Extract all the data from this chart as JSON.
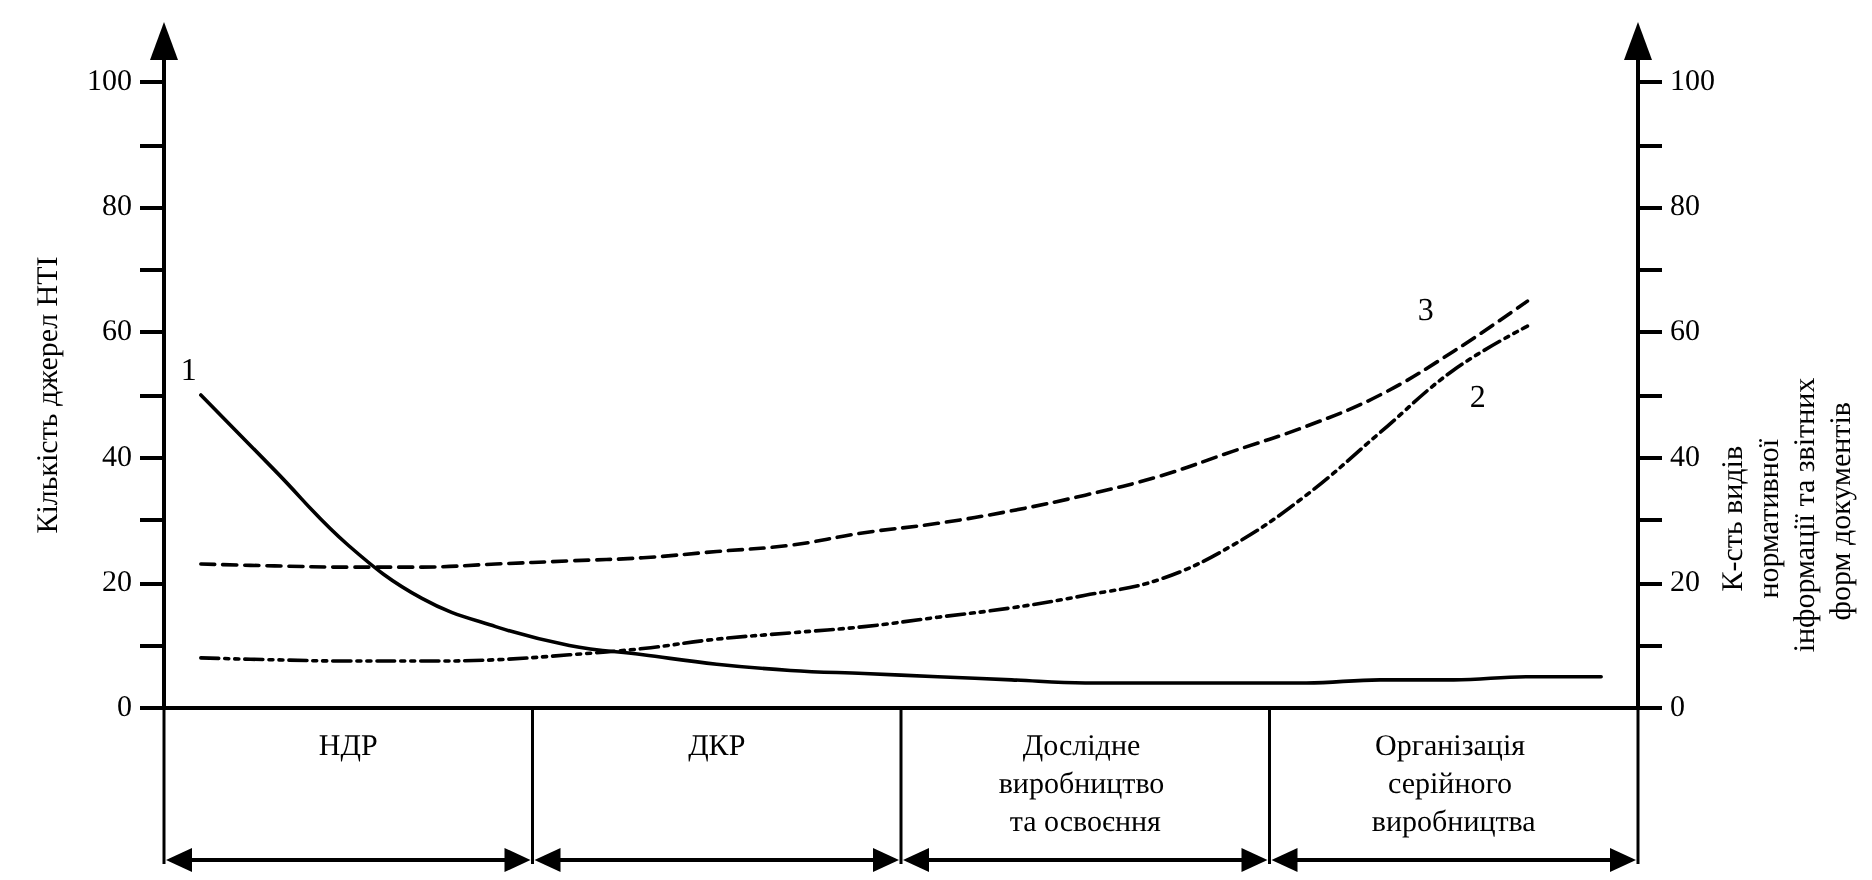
{
  "chart_data": {
    "type": "line",
    "ylabel": "Кількість джерел НТІ",
    "y2label": "К-сть видів нормативної інформації та звітних форм документів",
    "categories": [
      null,
      null,
      "НДР",
      null,
      null,
      null,
      null,
      "ДКР",
      null,
      null,
      null,
      null,
      "Дослідне виробництво та освоєння",
      null,
      null,
      null,
      null,
      "Організація серійного виробництва",
      null,
      null
    ],
    "ylim": [
      0,
      100
    ],
    "yticks": [
      0,
      {
        "value": 10,
        "label": null
      },
      20,
      {
        "value": 30,
        "label": null
      },
      40,
      {
        "value": 50,
        "label": null
      },
      60,
      {
        "value": 70,
        "label": null
      },
      80,
      {
        "value": 90,
        "label": null
      },
      100
    ],
    "y2lim": [
      0,
      100
    ],
    "y2ticks": [
      0,
      {
        "value": 10,
        "label": null
      },
      20,
      {
        "value": 30,
        "label": null
      },
      40,
      {
        "value": 50,
        "label": null
      },
      60,
      {
        "value": 70,
        "label": null
      },
      80,
      {
        "value": 90,
        "label": null
      },
      100
    ],
    "series": [
      {
        "name": "1",
        "color": "#000000",
        "line_style": "solid",
        "values": [
          50,
          38,
          26,
          17.5,
          13,
          10,
          8.5,
          7,
          6,
          5.5,
          5,
          4.5,
          4,
          4,
          4,
          4,
          4.5,
          4.5,
          5,
          5
        ]
      },
      {
        "name": "2",
        "color": "#000000",
        "line_style": "dashdot",
        "values": [
          8,
          7.7,
          7.5,
          7.5,
          7.7,
          8.5,
          9.5,
          11,
          12,
          13,
          14.5,
          16,
          18,
          20.5,
          26,
          34,
          44,
          54,
          61,
          null
        ]
      },
      {
        "name": "3",
        "color": "#000000",
        "line_style": "dashed",
        "values": [
          23,
          22.7,
          22.5,
          22.5,
          23,
          23.5,
          24,
          25,
          26,
          28,
          29.5,
          31.5,
          34,
          37,
          41,
          45,
          50,
          57,
          65,
          null
        ]
      }
    ]
  }
}
